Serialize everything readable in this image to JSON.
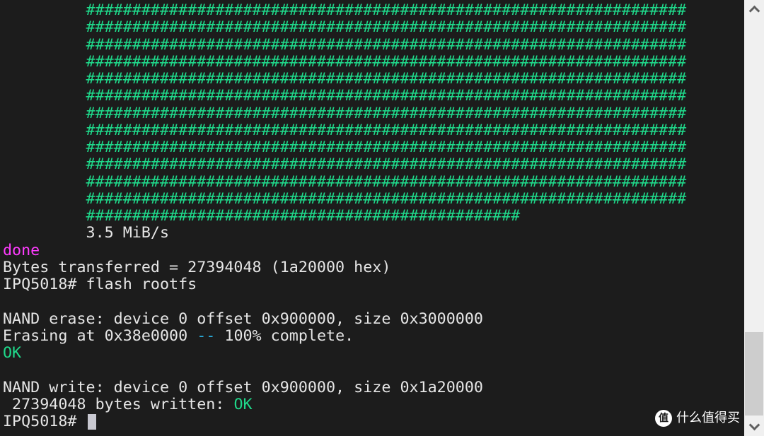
{
  "terminal": {
    "hash_full_row": "#################################################################",
    "hash_full_row_count": 12,
    "hash_last_row": "###############################################",
    "indent": "         ",
    "speed": "3.5 MiB/s",
    "lines": [
      [
        {
          "t": "done",
          "c": "magenta"
        }
      ],
      [
        {
          "t": "Bytes transferred = 27394048 (1a20000 hex)"
        }
      ],
      [
        {
          "t": "IPQ5018# flash rootfs"
        }
      ],
      [
        {
          "t": ""
        }
      ],
      [
        {
          "t": "NAND erase: device 0 offset 0x900000, size 0x3000000"
        }
      ],
      [
        {
          "t": "Erasing at 0x38e0000 "
        },
        {
          "t": "--",
          "c": "cyan"
        },
        {
          "t": " 100% complete."
        }
      ],
      [
        {
          "t": "OK",
          "c": "green"
        }
      ],
      [
        {
          "t": ""
        }
      ],
      [
        {
          "t": "NAND write: device 0 offset 0x900000, size 0x1a20000"
        }
      ],
      [
        {
          "t": " 27394048 bytes written: "
        },
        {
          "t": "OK",
          "c": "green"
        }
      ]
    ],
    "prompt": "IPQ5018# "
  },
  "colors": {
    "background": "#1c1c1c",
    "text": "#e6e6e6",
    "hash": "#1fd88a",
    "done": "#ff3cff",
    "ok": "#1fd88a",
    "dash": "#2ab0e0"
  },
  "scrollbar": {
    "position_fraction": 1.0
  },
  "watermark": {
    "logo_char": "值",
    "text": "什么值得买"
  }
}
